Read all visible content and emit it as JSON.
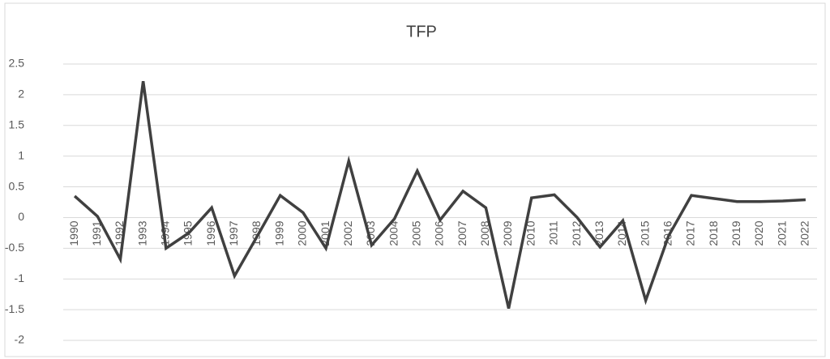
{
  "chart_data": {
    "type": "line",
    "title": "TFP",
    "categories": [
      "1990",
      "1991",
      "1992",
      "1993",
      "1994",
      "1995",
      "1996",
      "1997",
      "1998",
      "1999",
      "2000",
      "2001",
      "2002",
      "2003",
      "2004",
      "2005",
      "2006",
      "2007",
      "2008",
      "2009",
      "2010",
      "2011",
      "2012",
      "2013",
      "2014",
      "2015",
      "2016",
      "2017",
      "2018",
      "2019",
      "2020",
      "2021",
      "2022"
    ],
    "series": [
      {
        "name": "TFP",
        "color": "#404040",
        "values": [
          0.35,
          0.02,
          -0.68,
          2.22,
          -0.5,
          -0.25,
          0.16,
          -0.95,
          -0.3,
          0.36,
          0.08,
          -0.5,
          0.92,
          -0.45,
          -0.02,
          0.76,
          -0.04,
          0.43,
          0.16,
          -1.48,
          0.32,
          0.37,
          0.0,
          -0.48,
          -0.05,
          -1.35,
          -0.3,
          0.36,
          0.31,
          0.26,
          0.26,
          0.27,
          0.29
        ]
      }
    ],
    "ylim": [
      -2,
      2.5
    ],
    "yticks": [
      -2,
      -1.5,
      -1,
      -0.5,
      0,
      0.5,
      1,
      1.5,
      2,
      2.5
    ],
    "grid": true
  }
}
